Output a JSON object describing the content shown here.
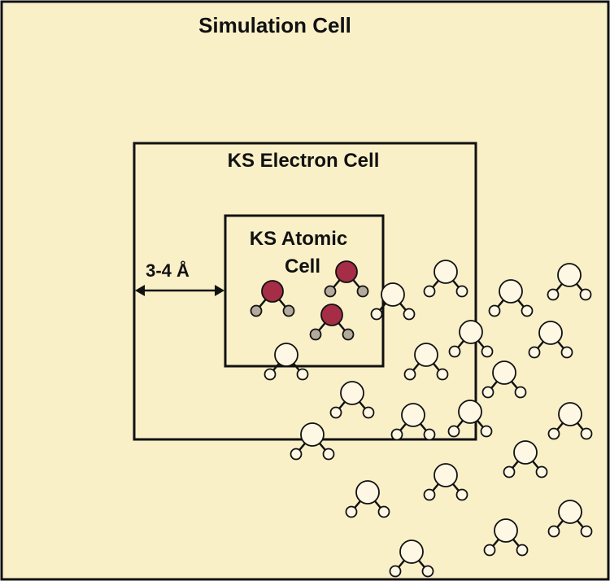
{
  "labels": {
    "simulation_cell": "Simulation Cell",
    "electron_cell": "KS Electron Cell",
    "atomic_cell_line1": "KS Atomic",
    "atomic_cell_line2": "Cell",
    "distance": "3-4 Å"
  },
  "colors": {
    "background": "#faf0c8",
    "border": "#111111",
    "qm_oxygen": "#a52d46",
    "qm_hydrogen": "#b4aa9c",
    "mm_atom": "#fdf7e4"
  },
  "qm_molecules": [
    {
      "name": "qm-water-1"
    },
    {
      "name": "qm-water-2"
    },
    {
      "name": "qm-water-3"
    }
  ],
  "mm_molecule_count_label": ""
}
